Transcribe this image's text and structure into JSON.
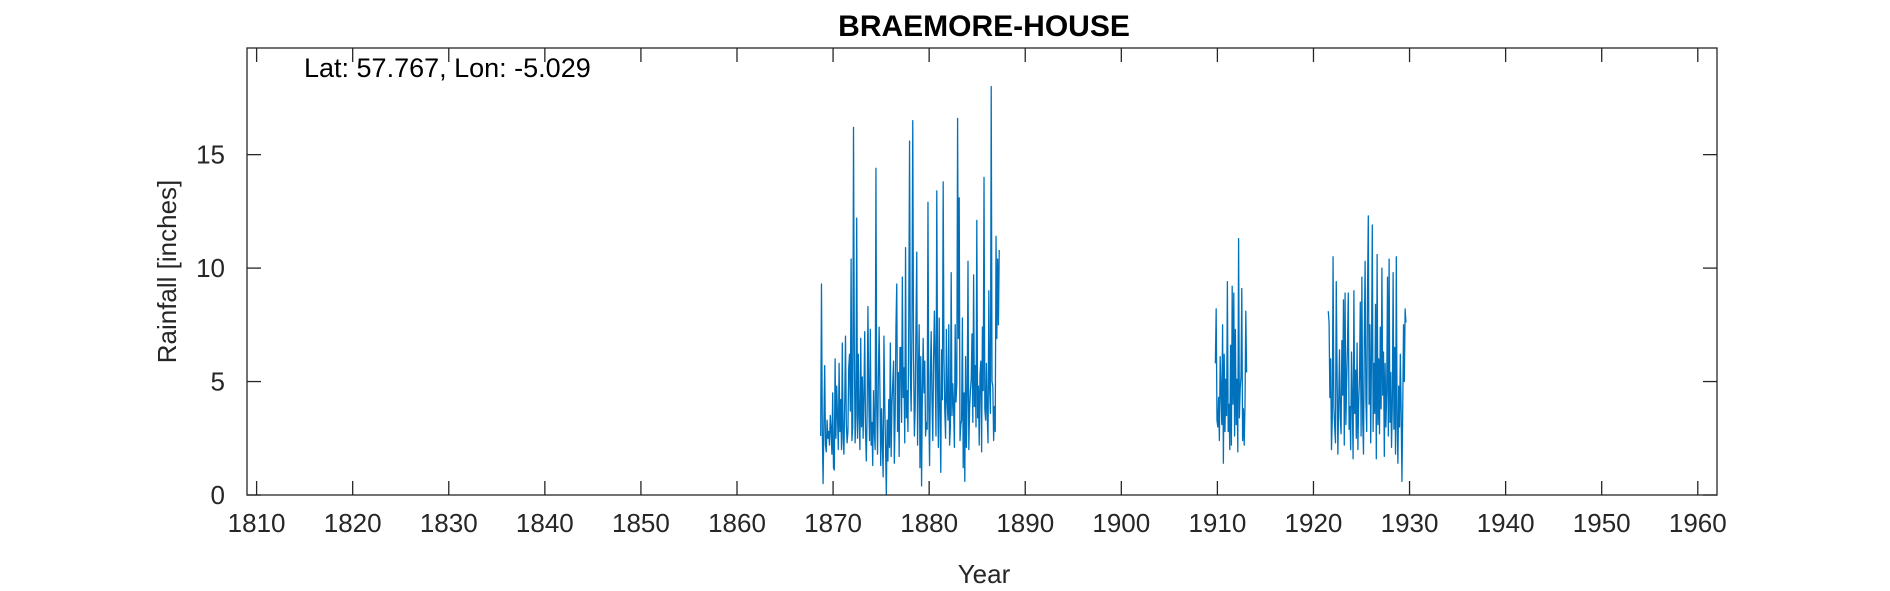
{
  "chart_data": {
    "type": "line",
    "title": "BRAEMORE-HOUSE",
    "annotation": "Lat: 57.767, Lon: -5.029",
    "xlabel": "Year",
    "ylabel": "Rainfall [inches]",
    "xlim": [
      1809,
      1962
    ],
    "ylim": [
      0,
      19.7
    ],
    "xticks": [
      1810,
      1820,
      1830,
      1840,
      1850,
      1860,
      1870,
      1880,
      1890,
      1900,
      1910,
      1920,
      1930,
      1940,
      1950,
      1960
    ],
    "yticks": [
      0,
      5,
      10,
      15
    ],
    "grid": false,
    "line_color": "#0072BD",
    "series": [
      {
        "segments": [
          {
            "start": 1868.71,
            "step": 0.0833333,
            "values": [
              2.6,
              9.3,
              2.9,
              0.5,
              3.2,
              5.7,
              2.2,
              1.9,
              3.3,
              2.5,
              2.8,
              2.2,
              3.5,
              2.9,
              1.8,
              4.5,
              1.2,
              1.1,
              6.0,
              2.5,
              4.8,
              3.5,
              2.0,
              5.8,
              2.8,
              4.2,
              2.0,
              6.7,
              2.5,
              1.8,
              4.0,
              7.0,
              3.1,
              2.3,
              2.8,
              5.6,
              6.2,
              3.7,
              10.4,
              2.4,
              3.0,
              16.2,
              6.6,
              2.3,
              3.5,
              12.2,
              2.5,
              6.2,
              3.4,
              2.0,
              6.9,
              3.0,
              5.2,
              2.5,
              4.4,
              7.2,
              2.8,
              1.5,
              3.6,
              8.3,
              4.5,
              2.4,
              7.3,
              2.2,
              3.2,
              1.3,
              4.6,
              2.8,
              2.0,
              14.4,
              3.9,
              1.8,
              5.1,
              7.4,
              4.6,
              1.3,
              3.8,
              2.3,
              0.8,
              7.0,
              4.1,
              2.1,
              0.0,
              3.3,
              1.5,
              4.2,
              2.1,
              6.7,
              1.7,
              4.0,
              4.9,
              5.9,
              1.4,
              3.5,
              7.4,
              9.3,
              2.8,
              5.4,
              1.7,
              6.5,
              6.5,
              3.2,
              9.6,
              4.3,
              5.6,
              2.3,
              10.9,
              3.4,
              4.6,
              2.8,
              7.7,
              15.6,
              5.3,
              3.7,
              7.4,
              16.5,
              6.1,
              2.6,
              3.8,
              7.5,
              10.7,
              2.2,
              5.2,
              7.5,
              1.2,
              6.1,
              0.4,
              4.6,
              6.9,
              4.5,
              5.9,
              2.6,
              3.2,
              2.9,
              12.9,
              3.9,
              1.3,
              5.2,
              7.2,
              4.2,
              2.4,
              6.0,
              8.1,
              5.8,
              2.6,
              13.4,
              4.8,
              2.1,
              7.8,
              3.6,
              1.0,
              6.4,
              4.2,
              13.8,
              6.0,
              3.7,
              2.5,
              7.3,
              4.1,
              3.3,
              7.5,
              2.2,
              3.0,
              9.8,
              3.5,
              4.9,
              3.9,
              2.1,
              7.5,
              4.1,
              4.9,
              16.6,
              6.9,
              13.1,
              2.4,
              3.1,
              3.3,
              7.8,
              1.2,
              4.5,
              0.6,
              6.1,
              2.1,
              4.4,
              10.3,
              2.0,
              3.8,
              4.6,
              5.1,
              7.1,
              3.2,
              9.7,
              3.9,
              5.7,
              3.0,
              12.1,
              3.4,
              4.8,
              2.2,
              5.3,
              5.9,
              1.9,
              7.4,
              4.6,
              14.0,
              3.8,
              3.3,
              5.8,
              3.5,
              2.3,
              9.0,
              4.7,
              3.6,
              18.0,
              5.0,
              4.8,
              2.4,
              3.9,
              2.8,
              11.4,
              6.9,
              10.4,
              7.5,
              10.8
            ]
          },
          {
            "start": 1909.79,
            "step": 0.0833333,
            "values": [
              5.8,
              8.2,
              3.3,
              3.0,
              4.3,
              2.4,
              6.1,
              4.6,
              3.1,
              7.5,
              1.4,
              6.2,
              2.8,
              5.1,
              3.5,
              9.4,
              2.8,
              4.0,
              2.0,
              6.6,
              2.2,
              9.2,
              4.0,
              8.9,
              2.6,
              7.3,
              3.1,
              5.1,
              1.9,
              11.3,
              3.4,
              4.7,
              5.2,
              9.1,
              2.4,
              3.8,
              2.2,
              4.0,
              8.1,
              5.4
            ]
          },
          {
            "start": 1921.54,
            "step": 0.0833333,
            "values": [
              8.1,
              7.6,
              4.3,
              6.0,
              2.0,
              3.3,
              10.5,
              3.9,
              3.0,
              2.3,
              9.4,
              5.4,
              1.8,
              4.0,
              6.4,
              3.4,
              2.7,
              6.8,
              4.4,
              8.6,
              2.2,
              8.9,
              3.1,
              5.1,
              6.6,
              8.9,
              2.9,
              3.9,
              2.0,
              6.3,
              4.1,
              1.6,
              9.0,
              3.6,
              5.5,
              2.5,
              6.7,
              2.0,
              4.1,
              5.2,
              8.5,
              2.6,
              9.6,
              3.3,
              1.8,
              6.9,
              10.3,
              4.2,
              2.8,
              8.9,
              12.3,
              4.0,
              7.5,
              2.3,
              6.2,
              11.9,
              2.8,
              5.8,
              3.6,
              8.4,
              1.6,
              10.6,
              3.1,
              6.0,
              2.7,
              7.4,
              3.8,
              10.0,
              4.4,
              6.3,
              1.7,
              5.8,
              3.0,
              4.6,
              9.6,
              2.6,
              10.4,
              3.2,
              5.4,
              2.1,
              4.0,
              9.8,
              2.9,
              6.5,
              1.8,
              10.5,
              3.1,
              1.4,
              4.8,
              3.0,
              6.2,
              3.7,
              0.6,
              3.8,
              7.5,
              5.0,
              8.2,
              7.6
            ]
          }
        ]
      }
    ]
  }
}
